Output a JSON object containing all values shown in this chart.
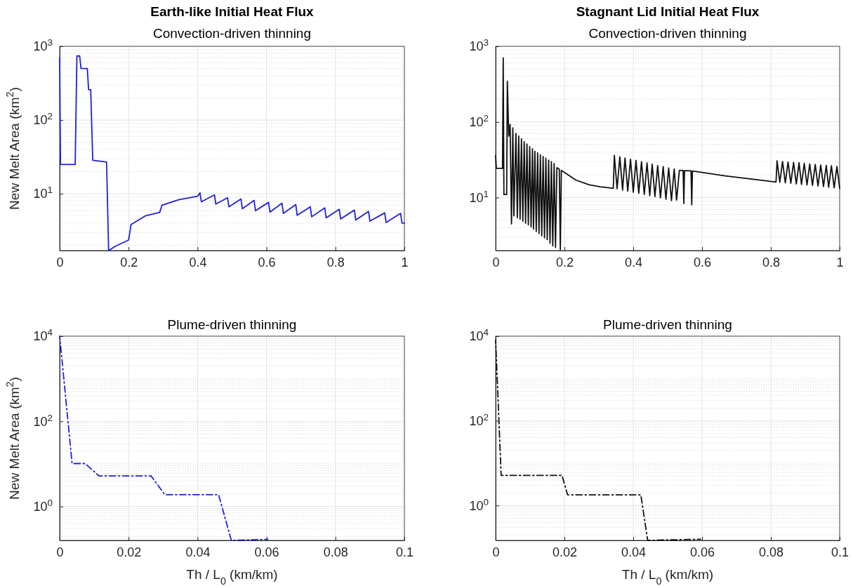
{
  "chart_data": [
    {
      "type": "line",
      "title": "Earth-like Initial Heat Flux",
      "subtitle": "Convection-driven thinning",
      "ylabel": "New Melt Area (km$^{2}$)",
      "log": "y",
      "grid": true,
      "line_style": "solid",
      "xlim": [
        0,
        1
      ],
      "xticks": [
        0,
        0.2,
        0.4,
        0.6,
        0.8,
        1
      ],
      "ylim": [
        1.7,
        1000
      ],
      "yticks": [
        {
          "value": 10,
          "label": "10$^{1}$"
        },
        {
          "value": 100,
          "label": "10$^{2}$"
        },
        {
          "value": 1000,
          "label": "10$^{3}$"
        }
      ],
      "series": [
        {
          "color": "#2020d8",
          "x": [
            0,
            0.0024,
            0.045,
            0.05,
            0.058,
            0.062,
            0.08,
            0.084,
            0.09,
            0.096,
            0.136,
            0.142,
            0.162,
            0.2,
            0.207,
            0.25,
            0.29,
            0.297,
            0.345,
            0.4,
            0.407,
            0.411,
            0.449,
            0.453,
            0.487,
            0.491,
            0.526,
            0.53,
            0.564,
            0.568,
            0.606,
            0.61,
            0.645,
            0.649,
            0.685,
            0.689,
            0.727,
            0.731,
            0.769,
            0.773,
            0.811,
            0.815,
            0.855,
            0.859,
            0.896,
            0.9,
            0.943,
            0.947,
            0.989,
            0.993,
            1
          ],
          "values": [
            695,
            25,
            25,
            740,
            740,
            500,
            500,
            258,
            258,
            28.5,
            27,
            1.7,
            1.95,
            2.36,
            3.83,
            5.05,
            5.6,
            7.0,
            8.3,
            9.25,
            10.3,
            7.8,
            9.66,
            7.26,
            8.85,
            6.66,
            8.49,
            6.27,
            8.13,
            5.9,
            7.65,
            5.65,
            7.45,
            5.42,
            7.14,
            5.1,
            6.66,
            4.88,
            6.44,
            4.72,
            6.17,
            4.56,
            6.01,
            4.41,
            5.76,
            4.26,
            5.51,
            4.08,
            5.42,
            4.0,
            4.0
          ]
        }
      ]
    },
    {
      "type": "line",
      "title": "Stagnant Lid Initial Heat Flux",
      "subtitle": "Convection-driven thinning",
      "log": "y",
      "grid": true,
      "line_style": "solid",
      "xlim": [
        0,
        1
      ],
      "xticks": [
        0,
        0.2,
        0.4,
        0.6,
        0.8,
        1
      ],
      "ylim": [
        2,
        1000
      ],
      "yticks": [
        {
          "value": 10,
          "label": "10$^{1}$"
        },
        {
          "value": 100,
          "label": "10$^{2}$"
        },
        {
          "value": 1000,
          "label": "10$^{3}$"
        }
      ],
      "series": [
        {
          "color": "#111111",
          "x": [
            0,
            0.002,
            0.02,
            0.022,
            0.024,
            0.032,
            0.034,
            0.038,
            0.042,
            0.046,
            0.05,
            0.053,
            0.059,
            0.063,
            0.067,
            0.071,
            0.075,
            0.079,
            0.083,
            0.087,
            0.091,
            0.095,
            0.099,
            0.103,
            0.107,
            0.11,
            0.114,
            0.118,
            0.122,
            0.126,
            0.13,
            0.134,
            0.138,
            0.142,
            0.146,
            0.15,
            0.154,
            0.158,
            0.162,
            0.166,
            0.17,
            0.174,
            0.178,
            0.185,
            0.188,
            0.191,
            0.233,
            0.272,
            0.304,
            0.342,
            0.345,
            0.353,
            0.361,
            0.369,
            0.376,
            0.384,
            0.392,
            0.4,
            0.408,
            0.416,
            0.424,
            0.432,
            0.44,
            0.448,
            0.455,
            0.463,
            0.471,
            0.479,
            0.487,
            0.495,
            0.503,
            0.511,
            0.519,
            0.526,
            0.534,
            0.545,
            0.547,
            0.549,
            0.568,
            0.57,
            0.572,
            0.667,
            0.815,
            0.818,
            0.826,
            0.834,
            0.842,
            0.85,
            0.858,
            0.866,
            0.874,
            0.882,
            0.889,
            0.897,
            0.905,
            0.913,
            0.921,
            0.929,
            0.937,
            0.945,
            0.953,
            0.961,
            0.968,
            0.976,
            0.984,
            0.992,
            1
          ],
          "values": [
            36,
            24.4,
            24.4,
            705,
            11,
            11,
            346,
            65,
            93,
            4.5,
            83.6,
            5.75,
            70.7,
            5.43,
            65.0,
            5.21,
            59.8,
            4.88,
            55.0,
            4.59,
            51.1,
            4.37,
            47.3,
            4.12,
            44.3,
            3.85,
            41.0,
            3.58,
            39.1,
            3.35,
            36.8,
            3.13,
            35.0,
            2.95,
            33.3,
            2.79,
            31.4,
            2.5,
            29.9,
            2.3,
            28.2,
            2.2,
            24.9,
            23.8,
            2.05,
            22.9,
            17.1,
            14.8,
            13.9,
            13.3,
            36.2,
            13.1,
            34.7,
            12.6,
            33.4,
            12.2,
            32.2,
            11.8,
            31.0,
            11.4,
            29.9,
            11.0,
            28.7,
            10.6,
            27.7,
            10.3,
            26.6,
            9.92,
            25.7,
            9.5,
            24.7,
            9.12,
            23.9,
            9.27,
            22.9,
            22.9,
            8.39,
            22.8,
            22.6,
            8.05,
            22.5,
            19.4,
            16.1,
            30.6,
            16.0,
            30.1,
            15.7,
            29.6,
            15.5,
            29.3,
            15.2,
            28.9,
            14.9,
            28.4,
            14.7,
            27.9,
            14.5,
            27.5,
            14.2,
            27.0,
            14.0,
            26.7,
            13.7,
            26.4,
            13.5,
            25.9,
            13.3
          ]
        }
      ]
    },
    {
      "type": "line",
      "title": "Plume-driven thinning",
      "xlabel": "Th / L$_{0}$ (km/km)",
      "ylabel": "New Melt Area (km$^{2}$)",
      "log": "y",
      "grid": true,
      "line_style": "dashdot",
      "xlim": [
        0,
        0.1
      ],
      "xticks": [
        0,
        0.02,
        0.04,
        0.06,
        0.08,
        0.1
      ],
      "ylim": [
        0.16,
        10000
      ],
      "yticks": [
        {
          "value": 1,
          "label": "10$^{0}$"
        },
        {
          "value": 100,
          "label": "10$^{2}$"
        },
        {
          "value": 10000,
          "label": "10$^{4}$"
        }
      ],
      "series": [
        {
          "color": "#2020d8",
          "x": [
            0,
            0.0036,
            0.0074,
            0.0114,
            0.0265,
            0.0305,
            0.0461,
            0.0498,
            0.0604
          ],
          "values": [
            10000,
            10.2,
            10.2,
            5.23,
            5.23,
            1.9,
            1.9,
            0.16,
            0.17
          ]
        }
      ]
    },
    {
      "type": "line",
      "title": "Plume-driven thinning",
      "xlabel": "Th / L$_{0}$ (km/km)",
      "log": "y",
      "grid": true,
      "line_style": "dashdot",
      "xlim": [
        0,
        0.1
      ],
      "xticks": [
        0,
        0.02,
        0.04,
        0.06,
        0.08,
        0.1
      ],
      "ylim": [
        0.15,
        10000
      ],
      "yticks": [
        {
          "value": 1,
          "label": "10$^{0}$"
        },
        {
          "value": 100,
          "label": "10$^{2}$"
        },
        {
          "value": 10000,
          "label": "10$^{4}$"
        }
      ],
      "series": [
        {
          "color": "#111111",
          "x": [
            0,
            0.0016,
            0.0193,
            0.0209,
            0.0422,
            0.0442,
            0.0596
          ],
          "values": [
            8000,
            5.13,
            5.13,
            1.79,
            1.79,
            0.15,
            0.16
          ]
        }
      ]
    }
  ]
}
